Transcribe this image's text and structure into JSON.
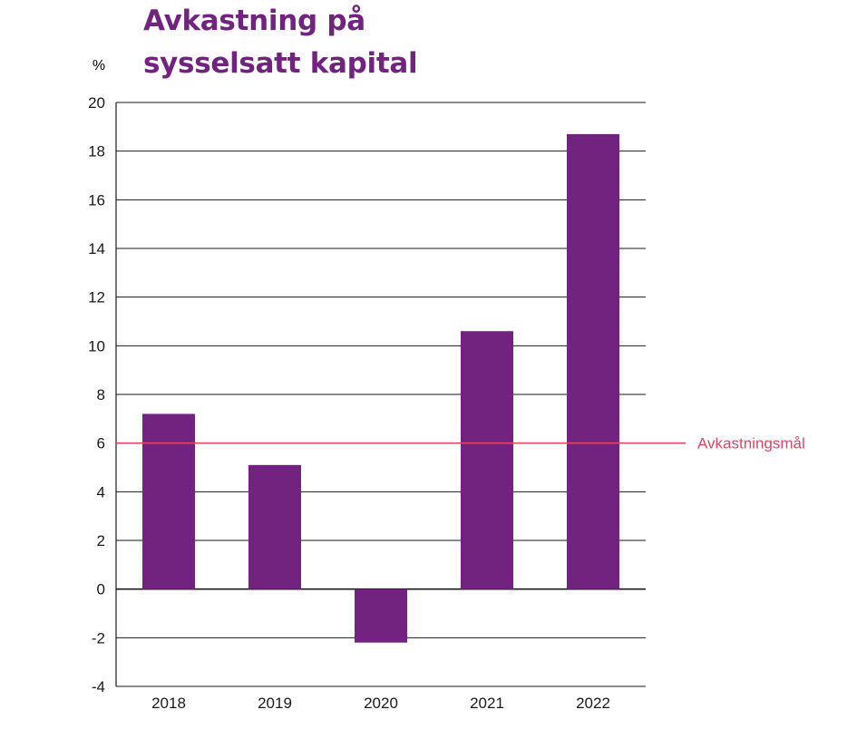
{
  "chart_data": {
    "type": "bar",
    "title": [
      "Avkastning på",
      "sysselsatt kapital"
    ],
    "ylabel": "%",
    "xlabel": "",
    "ylim": [
      -4,
      20
    ],
    "yticks": [
      20,
      18,
      16,
      14,
      12,
      10,
      8,
      6,
      4,
      2,
      0,
      -2,
      -4
    ],
    "ytick_labels": [
      "20",
      "18",
      "16",
      "14",
      "12",
      "10",
      "8",
      "6",
      "4",
      "2",
      "0",
      "-2",
      "-4"
    ],
    "categories": [
      "2018",
      "2019",
      "2020",
      "2021",
      "2022"
    ],
    "values": [
      7.2,
      5.1,
      -2.2,
      10.6,
      18.7
    ],
    "grid": true,
    "reference_line": {
      "label": "Avkastningsmål",
      "value": 6
    }
  },
  "colors": {
    "bar": "#72237f",
    "title": "#72237f",
    "reference": "#e04666",
    "grid": "#1a1a1a",
    "text": "#1a1a1a"
  }
}
